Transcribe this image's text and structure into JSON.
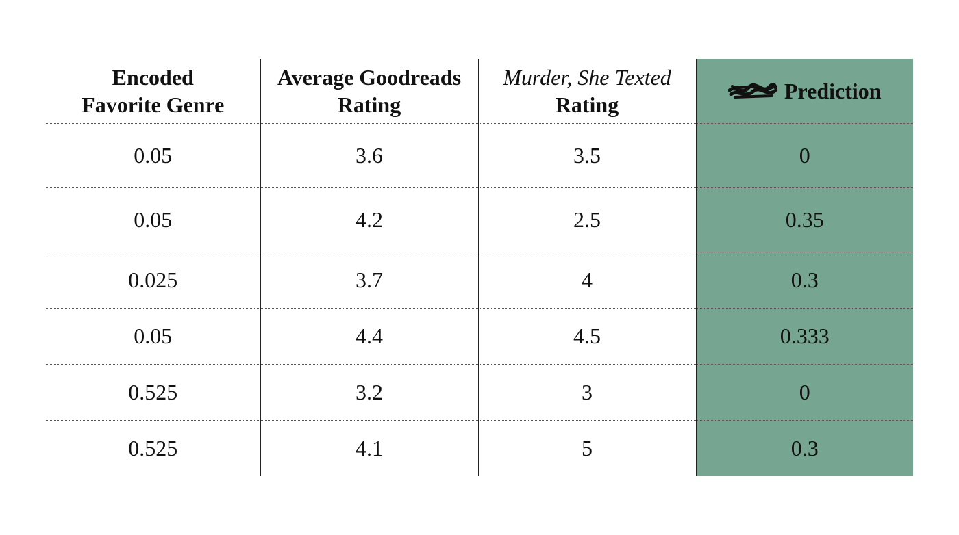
{
  "table": {
    "headers": {
      "col1": [
        "Encoded",
        "Favorite Genre"
      ],
      "col2": [
        "Average Goodreads",
        "Rating"
      ],
      "col3_title": "Murder, She Texted",
      "col3_sub": "Rating",
      "col4": "Prediction"
    },
    "rows": [
      {
        "genre": "0.05",
        "goodreads": "3.6",
        "mst": "3.5",
        "prediction": "0"
      },
      {
        "genre": "0.05",
        "goodreads": "4.2",
        "mst": "2.5",
        "prediction": "0.35"
      },
      {
        "genre": "0.025",
        "goodreads": "3.7",
        "mst": "4",
        "prediction": "0.3"
      },
      {
        "genre": "0.05",
        "goodreads": "4.4",
        "mst": "4.5",
        "prediction": "0.333"
      },
      {
        "genre": "0.525",
        "goodreads": "3.2",
        "mst": "3",
        "prediction": "0"
      },
      {
        "genre": "0.525",
        "goodreads": "4.1",
        "mst": "5",
        "prediction": "0.3"
      }
    ],
    "colors": {
      "prediction_column": "#76a691"
    }
  },
  "icons": {
    "redaction": "scribble-redaction-icon"
  }
}
